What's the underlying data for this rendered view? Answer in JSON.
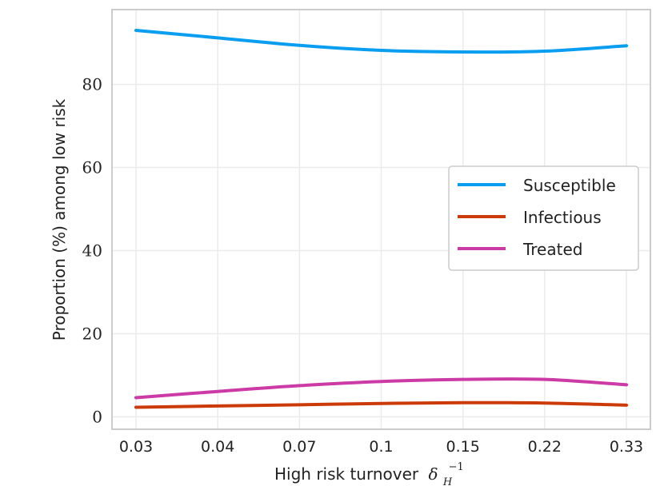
{
  "chart_data": {
    "type": "line",
    "title": "",
    "xlabel": "High risk turnover",
    "xlabel_math": {
      "base": "δ",
      "sub": "H",
      "sup": "−1"
    },
    "ylabel": "Proportion (%) among low risk",
    "x_tick_labels": [
      "0.03",
      "0.04",
      "0.07",
      "0.1",
      "0.15",
      "0.22",
      "0.33"
    ],
    "y_ticks": [
      0,
      20,
      40,
      60,
      80
    ],
    "y_tick_labels": [
      "0",
      "20",
      "40",
      "60",
      "80"
    ],
    "ylim": [
      -3,
      98
    ],
    "grid": true,
    "legend_position": "center-right",
    "series": [
      {
        "name": "Susceptible",
        "color": "#0a9ef0",
        "values": [
          93.0,
          91.2,
          89.4,
          88.2,
          87.8,
          88.0,
          89.3
        ]
      },
      {
        "name": "Infectious",
        "color": "#cc3a0a",
        "values": [
          2.3,
          2.6,
          2.9,
          3.2,
          3.4,
          3.3,
          2.8
        ]
      },
      {
        "name": "Treated",
        "color": "#cc3aa6",
        "values": [
          4.6,
          6.1,
          7.5,
          8.5,
          9.0,
          9.0,
          7.7
        ]
      }
    ]
  }
}
